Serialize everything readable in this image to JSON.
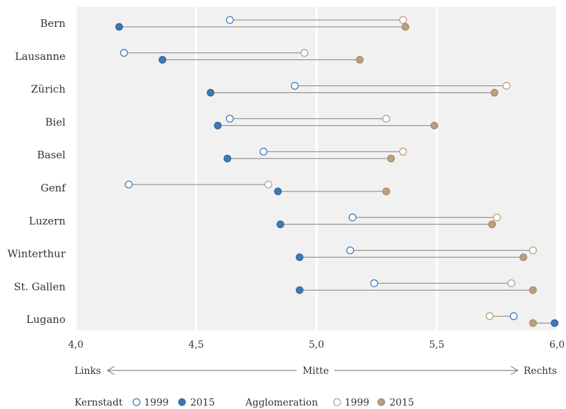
{
  "chart_data": {
    "type": "dumbbell",
    "categories": [
      "Bern",
      "Lausanne",
      "Zürich",
      "Biel",
      "Basel",
      "Genf",
      "Luzern",
      "Winterthur",
      "St. Gallen",
      "Lugano"
    ],
    "xlim": [
      4.0,
      6.0
    ],
    "xticks": [
      "4,0",
      "4,5",
      "5,0",
      "5,5",
      "6,0"
    ],
    "xtick_values": [
      4.0,
      4.5,
      5.0,
      5.5,
      6.0
    ],
    "direction_labels": {
      "left": "Links",
      "center": "Mitte",
      "right": "Rechts"
    },
    "series": [
      {
        "group": "Kernstadt",
        "name": "1999",
        "style": "open",
        "color": "#3d7ab5",
        "values": [
          4.64,
          4.2,
          4.91,
          4.64,
          4.78,
          4.22,
          5.15,
          5.14,
          5.24,
          5.82
        ]
      },
      {
        "group": "Kernstadt",
        "name": "2015",
        "style": "filled",
        "color": "#3d7ab5",
        "values": [
          4.18,
          4.36,
          4.56,
          4.59,
          4.63,
          4.84,
          4.85,
          4.93,
          4.93,
          5.99
        ]
      },
      {
        "group": "Agglomeration",
        "name": "1999",
        "style": "open",
        "color": "#b9a07e",
        "values": [
          5.36,
          4.95,
          5.79,
          5.29,
          5.36,
          4.8,
          5.75,
          5.9,
          5.81,
          5.72
        ]
      },
      {
        "group": "Agglomeration",
        "name": "2015",
        "style": "filled",
        "color": "#b9a07e",
        "values": [
          5.37,
          5.18,
          5.74,
          5.49,
          5.31,
          5.29,
          5.73,
          5.86,
          5.9,
          5.9
        ]
      }
    ],
    "legend": {
      "groups": [
        "Kernstadt",
        "Agglomeration"
      ],
      "years": [
        "1999",
        "2015"
      ],
      "placement": "bottom-left"
    },
    "grid": {
      "vertical": true,
      "horizontal": false
    }
  }
}
